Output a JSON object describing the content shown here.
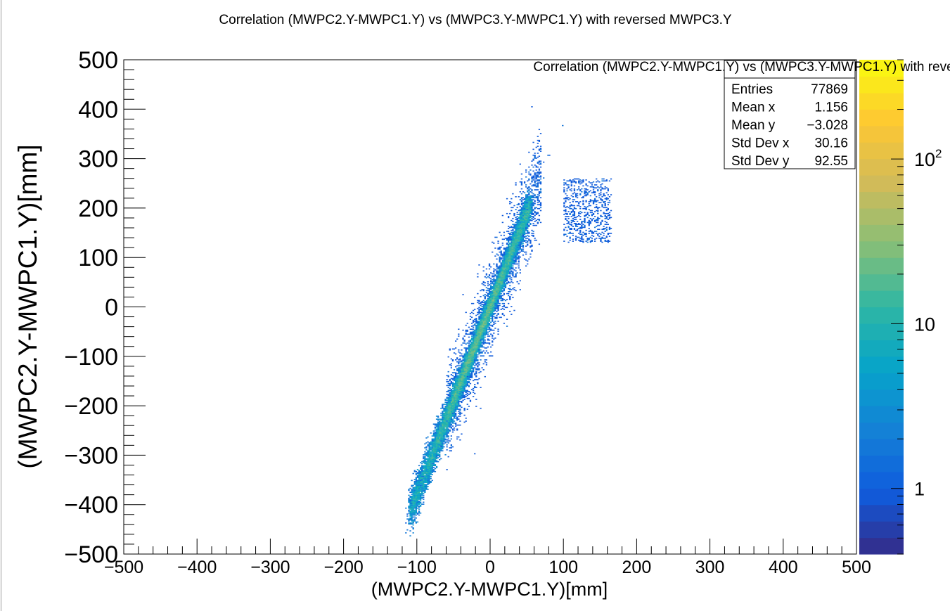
{
  "chart_data": {
    "type": "heatmap",
    "title": "Correlation (MWPC2.Y-MWPC1.Y) vs (MWPC3.Y-MWPC1.Y) with reversed MWPC3.Y",
    "xlabel": "(MWPC2.Y-MWPC1.Y)[mm]",
    "ylabel": "(MWPC2.Y-MWPC1.Y)[mm]",
    "xlim": [
      -500,
      500
    ],
    "ylim": [
      -500,
      500
    ],
    "x_ticks": [
      -500,
      -400,
      -300,
      -200,
      -100,
      0,
      100,
      200,
      300,
      400,
      500
    ],
    "y_ticks": [
      -500,
      -400,
      -300,
      -200,
      -100,
      0,
      100,
      200,
      300,
      400,
      500
    ],
    "x_tick_labels": [
      "−500",
      "−400",
      "−300",
      "−200",
      "−100",
      "0",
      "100",
      "200",
      "300",
      "400",
      "500"
    ],
    "y_tick_labels": [
      "−500",
      "−400",
      "−300",
      "−200",
      "−100",
      "0",
      "100",
      "200",
      "300",
      "400",
      "500"
    ],
    "grid": false,
    "colorbar": {
      "scale": "log",
      "range": [
        0.4,
        400
      ],
      "tick_labels": [
        {
          "value": 1,
          "base": "1",
          "exp": ""
        },
        {
          "value": 10,
          "base": "10",
          "exp": ""
        },
        {
          "value": 100,
          "base": "10",
          "exp": "2"
        }
      ],
      "colors": [
        "#352a87",
        "#0f5cdd",
        "#1481d6",
        "#06a4ca",
        "#2eb7a4",
        "#87bf77",
        "#d1bb59",
        "#fec832",
        "#f9fb0e"
      ]
    },
    "stats_box": {
      "title": "Correlation (MWPC2.Y-MWPC1.Y) vs (MWPC3.Y-MWPC1.Y) with reversed MWPC3.Y",
      "placement": "top-right",
      "rows": [
        {
          "label": "Entries",
          "value": "77869"
        },
        {
          "label": "Mean x",
          "value": "1.156"
        },
        {
          "label": "Mean y",
          "value": "−3.028"
        },
        {
          "label": "Std Dev x",
          "value": "30.16"
        },
        {
          "label": "Std Dev y",
          "value": "92.55"
        }
      ]
    },
    "distribution": {
      "main_band": {
        "x_range": [
          -110,
          55
        ],
        "slope": 3.8,
        "intercept": 0
      },
      "clusters": [
        {
          "x_range": [
            100,
            165
          ],
          "y_range": [
            130,
            260
          ]
        }
      ]
    }
  }
}
